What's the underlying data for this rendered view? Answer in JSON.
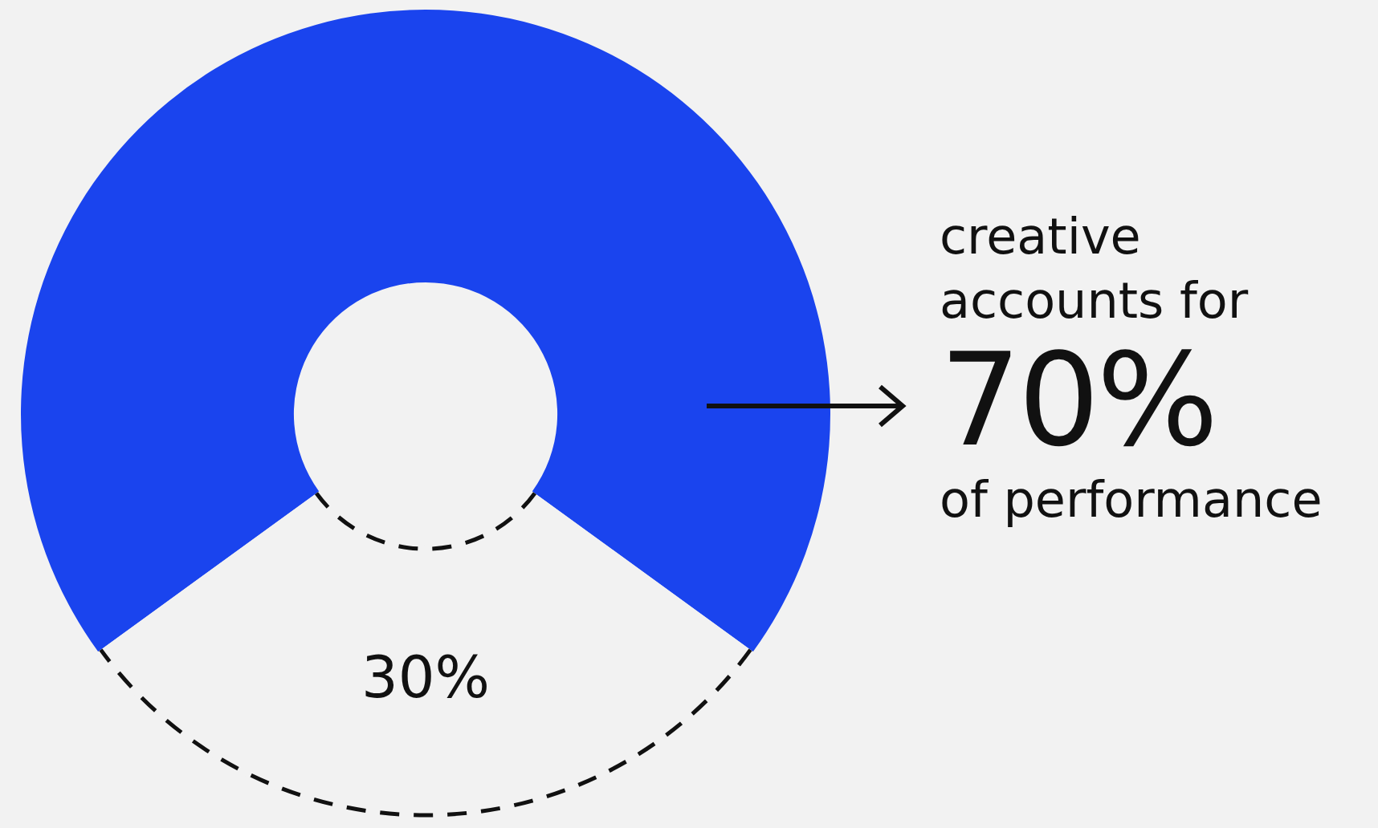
{
  "chart_data": {
    "type": "donut",
    "categories": [
      null,
      null
    ],
    "values": [
      70,
      30
    ],
    "colors": [
      "#1a44ee",
      "#f2f2f2"
    ],
    "value_labels": [
      "70%",
      "30%"
    ],
    "annotations": [
      "creative accounts for",
      "of performance"
    ],
    "legend": false
  }
}
